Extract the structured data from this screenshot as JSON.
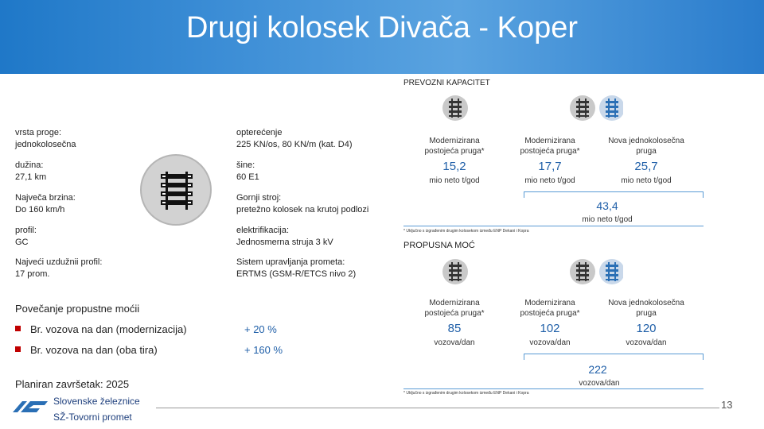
{
  "title": "Drugi kolosek Divača - Koper",
  "specs": [
    {
      "label": "vrsta proge:",
      "value": "jednokolosečna"
    },
    {
      "label": "dužina:",
      "value": "27,1 km"
    },
    {
      "label": "Največa brzina:",
      "value": "Do 160 km/h"
    },
    {
      "label": "profil:",
      "value": "GC"
    },
    {
      "label": "Najveći uzdužnii profil:",
      "value": "17 prom."
    },
    {
      "label": "opterećenje",
      "value": "225 KN/os, 80 KN/m (kat. D4)"
    },
    {
      "label": "šine:",
      "value": "60 E1"
    },
    {
      "label": "Gornji stroj:",
      "value": "pretežno kolosek na krutoj podlozi"
    },
    {
      "label": "elektrifikacija:",
      "value": "Jednosmerna struja 3 kV"
    },
    {
      "label": "Sistem upravljanja prometa:",
      "value": "ERTMS (GSM-R/ETCS nivo 2)"
    }
  ],
  "capacity": {
    "heading": "PREVOZNI KAPACITET",
    "columns": [
      {
        "title1": "Modernizirana",
        "title2": "postojeća pruga*",
        "value": "15,2",
        "unit": "mio neto t/god"
      },
      {
        "title1": "Modernizirana",
        "title2": "postojeća pruga*",
        "value": "17,7",
        "unit": "mio neto t/god"
      },
      {
        "title1": "Nova jednokolosečna",
        "title2": "pruga",
        "value": "25,7",
        "unit": "mio neto t/god"
      }
    ],
    "total": "43,4",
    "total_unit": "mio neto t/god",
    "footnote": "* Uključno s izgrađenim drugim kolosekom između ENP Dekani i Kopra"
  },
  "throughput": {
    "heading": "PROPUSNA MOĆ",
    "columns": [
      {
        "title1": "Modernizirana",
        "title2": "postojeća pruga*",
        "value": "85",
        "unit": "vozova/dan"
      },
      {
        "title1": "Modernizirana",
        "title2": "postojeća pruga*",
        "value": "102",
        "unit": "vozova/dan"
      },
      {
        "title1": "Nova jednokolosečna",
        "title2": "pruga",
        "value": "120",
        "unit": "vozova/dan"
      }
    ],
    "total": "222",
    "total_unit": "vozova/dan",
    "footnote": "* Uključno s izgrađenim drugim kolosekom između ENP Dekani i Kopra"
  },
  "increase": {
    "title": "Povečanje propustne moćii",
    "items": [
      {
        "label": "Br. vozova na dan (modernizacija)",
        "value": "+ 20 %"
      },
      {
        "label": "Br. vozova na dan (oba tira)",
        "value": "+ 160 %"
      }
    ]
  },
  "planned": "Planiran završetak: 2025",
  "logo": {
    "line1": "Slovenske železnice",
    "line2": "SŽ-Tovorni promet"
  },
  "page_number": "13",
  "colors": {
    "accent": "#1f5fa8",
    "line": "#5a9bd5",
    "bullet": "#c00000",
    "header": "#2a7ccc"
  }
}
